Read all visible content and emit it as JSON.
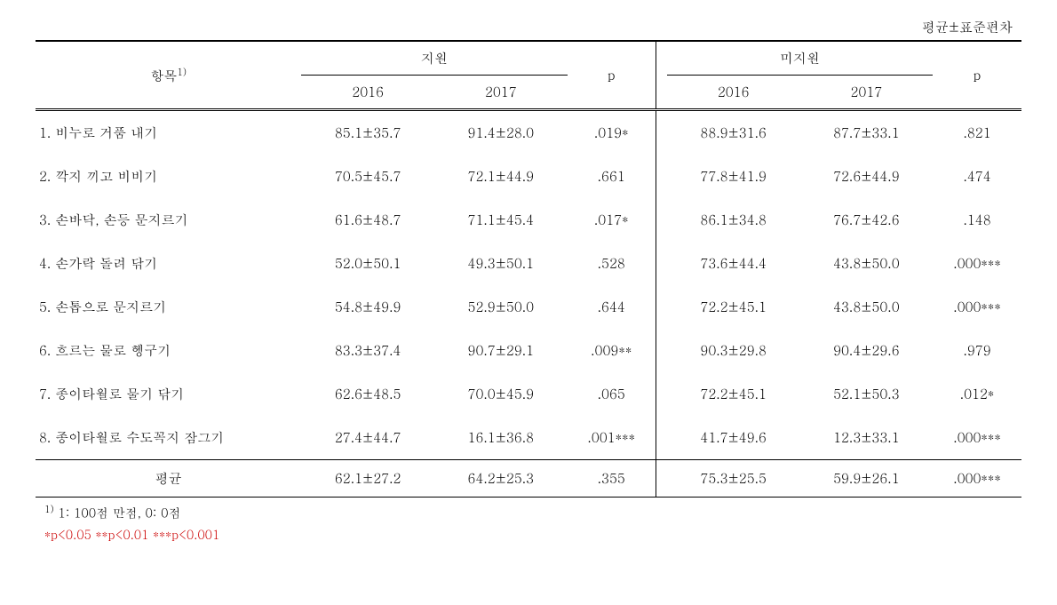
{
  "caption": "평균±표준편차",
  "header": {
    "item": "항목",
    "item_sup": "1)",
    "group1": "지원",
    "group2": "미지원",
    "year1": "2016",
    "year2": "2017",
    "p": "p"
  },
  "rows": [
    {
      "label": "1. 비누로 거품 내기",
      "g1_2016": "85.1±35.7",
      "g1_2017": "91.4±28.0",
      "g1_p": ".019*",
      "g2_2016": "88.9±31.6",
      "g2_2017": "87.7±33.1",
      "g2_p": ".821"
    },
    {
      "label": "2. 깍지 끼고 비비기",
      "g1_2016": "70.5±45.7",
      "g1_2017": "72.1±44.9",
      "g1_p": ".661",
      "g2_2016": "77.8±41.9",
      "g2_2017": "72.6±44.9",
      "g2_p": ".474"
    },
    {
      "label": "3. 손바닥, 손등 문지르기",
      "g1_2016": "61.6±48.7",
      "g1_2017": "71.1±45.4",
      "g1_p": ".017*",
      "g2_2016": "86.1±34.8",
      "g2_2017": "76.7±42.6",
      "g2_p": ".148"
    },
    {
      "label": "4. 손가락 돌려 닦기",
      "g1_2016": "52.0±50.1",
      "g1_2017": "49.3±50.1",
      "g1_p": ".528",
      "g2_2016": "73.6±44.4",
      "g2_2017": "43.8±50.0",
      "g2_p": ".000***"
    },
    {
      "label": "5. 손톱으로 문지르기",
      "g1_2016": "54.8±49.9",
      "g1_2017": "52.9±50.0",
      "g1_p": ".644",
      "g2_2016": "72.2±45.1",
      "g2_2017": "43.8±50.0",
      "g2_p": ".000***"
    },
    {
      "label": "6. 흐르는 물로 헹구기",
      "g1_2016": "83.3±37.4",
      "g1_2017": "90.7±29.1",
      "g1_p": ".009**",
      "g2_2016": "90.3±29.8",
      "g2_2017": "90.4±29.6",
      "g2_p": ".979"
    },
    {
      "label": "7. 종이타월로 물기 닦기",
      "g1_2016": "62.6±48.5",
      "g1_2017": "70.0±45.9",
      "g1_p": ".065",
      "g2_2016": "72.2±45.1",
      "g2_2017": "52.1±50.3",
      "g2_p": ".012*"
    },
    {
      "label": "8. 종이타월로 수도꼭지 잠그기",
      "g1_2016": "27.4±44.7",
      "g1_2017": "16.1±36.8",
      "g1_p": ".001***",
      "g2_2016": "41.7±49.6",
      "g2_2017": "12.3±33.1",
      "g2_p": ".000***"
    }
  ],
  "avg": {
    "label": "평균",
    "g1_2016": "62.1±27.2",
    "g1_2017": "64.2±25.3",
    "g1_p": ".355",
    "g2_2016": "75.3±25.5",
    "g2_2017": "59.9±26.1",
    "g2_p": ".000***"
  },
  "footnote_sup": "1)",
  "footnote": " 1: 100점 만점, 0: 0점",
  "significance": "*p<0.05  **p<0.01  ***p<0.001"
}
